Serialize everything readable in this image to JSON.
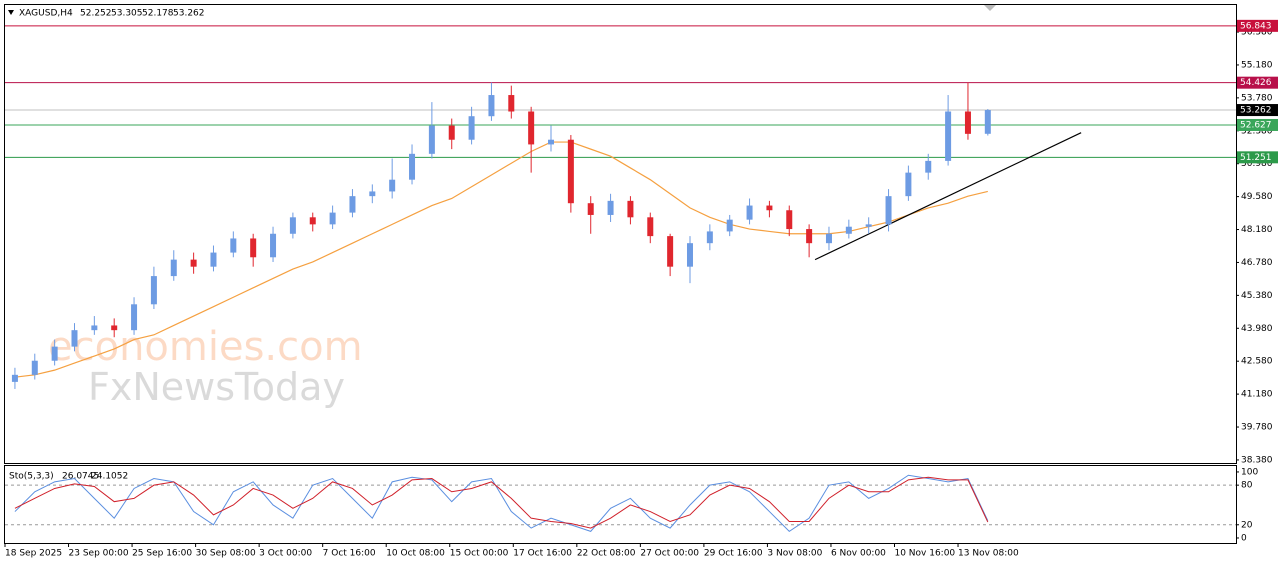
{
  "header": {
    "symbol": "XAGUSD,H4",
    "ohlc": [
      52.252,
      53.305,
      52.178,
      53.262
    ]
  },
  "watermark": [
    "economies.com",
    "FxNewsToday"
  ],
  "chart_data": [
    {
      "type": "candlestick",
      "open": [
        41.7,
        42.0,
        42.6,
        43.2,
        43.9,
        44.1,
        43.9,
        45.0,
        46.2,
        46.9,
        46.6,
        47.2,
        47.8,
        47.0,
        48.0,
        48.7,
        48.4,
        48.9,
        49.6,
        49.8,
        50.3,
        51.4,
        52.6,
        52.0,
        53.0,
        53.9,
        53.2,
        51.8,
        52.0,
        49.3,
        48.8,
        49.4,
        48.7,
        47.9,
        46.6,
        47.6,
        48.1,
        48.6,
        49.2,
        49.0,
        48.2,
        47.6,
        48.0,
        48.3,
        48.4,
        49.6,
        50.6,
        51.1,
        53.2,
        52.252
      ],
      "high": [
        42.3,
        42.9,
        43.5,
        44.2,
        44.5,
        44.4,
        45.3,
        46.6,
        47.3,
        47.2,
        47.5,
        48.1,
        48.0,
        48.3,
        48.9,
        48.9,
        49.2,
        49.9,
        50.1,
        51.2,
        51.8,
        53.6,
        52.9,
        53.4,
        54.43,
        54.3,
        53.4,
        52.6,
        52.2,
        49.6,
        49.7,
        49.6,
        48.9,
        48.0,
        47.9,
        48.4,
        48.8,
        49.5,
        49.4,
        49.2,
        48.4,
        48.3,
        48.6,
        48.7,
        49.9,
        50.9,
        51.4,
        53.9,
        54.43,
        53.305
      ],
      "low": [
        41.4,
        41.8,
        42.4,
        43.0,
        43.7,
        43.6,
        43.7,
        44.8,
        46.0,
        46.3,
        46.4,
        47.0,
        46.6,
        46.8,
        47.8,
        48.1,
        48.2,
        48.7,
        49.3,
        49.5,
        50.1,
        51.2,
        51.6,
        51.8,
        52.8,
        52.9,
        50.6,
        51.5,
        48.9,
        48.0,
        48.5,
        48.4,
        47.6,
        46.2,
        45.9,
        47.3,
        47.9,
        48.4,
        48.7,
        47.9,
        47.0,
        47.3,
        47.8,
        48.0,
        48.1,
        49.4,
        50.3,
        50.9,
        52.0,
        52.178
      ],
      "close": [
        42.0,
        42.6,
        43.2,
        43.9,
        44.1,
        43.9,
        45.0,
        46.2,
        46.9,
        46.6,
        47.2,
        47.8,
        47.0,
        48.0,
        48.7,
        48.4,
        48.9,
        49.6,
        49.8,
        50.3,
        51.4,
        52.6,
        52.0,
        53.0,
        53.9,
        53.2,
        51.8,
        52.0,
        49.3,
        48.8,
        49.4,
        48.7,
        47.9,
        46.6,
        47.6,
        48.1,
        48.6,
        49.2,
        49.0,
        48.2,
        47.6,
        48.0,
        48.3,
        48.4,
        49.6,
        50.6,
        51.1,
        53.2,
        52.25,
        53.262
      ],
      "up_color": "#6d9be3",
      "down_color": "#e0262e",
      "ma": {
        "color": "#f5a040",
        "values": [
          41.9,
          42.0,
          42.2,
          42.5,
          42.8,
          43.1,
          43.5,
          43.7,
          44.1,
          44.5,
          44.9,
          45.3,
          45.7,
          46.1,
          46.5,
          46.8,
          47.2,
          47.6,
          48.0,
          48.4,
          48.8,
          49.2,
          49.5,
          50.0,
          50.5,
          51.0,
          51.5,
          51.9,
          51.9,
          51.6,
          51.3,
          50.8,
          50.3,
          49.7,
          49.1,
          48.7,
          48.4,
          48.2,
          48.1,
          48.0,
          48.0,
          48.0,
          48.1,
          48.3,
          48.5,
          48.8,
          49.1,
          49.3,
          49.6,
          49.8
        ]
      },
      "trendline": {
        "color": "#000000",
        "x": [
          40.8,
          54.2
        ],
        "y": [
          46.9,
          52.3
        ]
      },
      "levels": [
        {
          "value": 56.843,
          "color": "#c8103c"
        },
        {
          "value": 54.426,
          "color": "#b8104a"
        },
        {
          "value": 53.262,
          "color": "#000000"
        },
        {
          "value": 52.627,
          "color": "#3aa65a"
        },
        {
          "value": 51.251,
          "color": "#2c9a4a"
        }
      ],
      "xlim": [
        0,
        62
      ],
      "ylim": [
        38.25,
        57.73
      ],
      "yticks": [
        {
          "value": 38.38,
          "label": "38.380"
        },
        {
          "value": 39.78,
          "label": "39.780"
        },
        {
          "value": 41.18,
          "label": "41.180"
        },
        {
          "value": 42.58,
          "label": "42.580"
        },
        {
          "value": 43.98,
          "label": "43.980"
        },
        {
          "value": 45.38,
          "label": "45.380"
        },
        {
          "value": 46.78,
          "label": "46.780"
        },
        {
          "value": 48.18,
          "label": "48.180"
        },
        {
          "value": 49.58,
          "label": "49.580"
        },
        {
          "value": 50.98,
          "label": "50.980"
        },
        {
          "value": 52.38,
          "label": "52.380"
        },
        {
          "value": 53.78,
          "label": "53.780"
        },
        {
          "value": 55.18,
          "label": "55.180"
        },
        {
          "value": 56.58,
          "label": "56.580"
        }
      ],
      "xticks": [
        {
          "value": 0,
          "label": "18 Sep 2025"
        },
        {
          "value": 3.2,
          "label": "23 Sep 00:00"
        },
        {
          "value": 6.4,
          "label": "25 Sep 16:00"
        },
        {
          "value": 9.6,
          "label": "30 Sep 08:00"
        },
        {
          "value": 12.8,
          "label": "3 Oct 00:00"
        },
        {
          "value": 16,
          "label": "7 Oct 16:00"
        },
        {
          "value": 19.2,
          "label": "10 Oct 08:00"
        },
        {
          "value": 22.4,
          "label": "15 Oct 00:00"
        },
        {
          "value": 25.6,
          "label": "17 Oct 16:00"
        },
        {
          "value": 28.8,
          "label": "22 Oct 08:00"
        },
        {
          "value": 32,
          "label": "27 Oct 00:00"
        },
        {
          "value": 35.2,
          "label": "29 Oct 16:00"
        },
        {
          "value": 38.4,
          "label": "3 Nov 08:00"
        },
        {
          "value": 41.6,
          "label": "6 Nov 00:00"
        },
        {
          "value": 44.8,
          "label": "10 Nov 16:00"
        },
        {
          "value": 48,
          "label": "13 Nov 08:00"
        }
      ]
    },
    {
      "type": "line",
      "title": "Sto(5,3,3)",
      "readout": [
        26.0745,
        24.1052
      ],
      "series": [
        {
          "color": "#5b8fe0",
          "values": [
            40,
            70,
            85,
            90,
            60,
            30,
            75,
            90,
            85,
            40,
            20,
            70,
            85,
            50,
            30,
            80,
            90,
            60,
            30,
            85,
            92,
            88,
            55,
            85,
            90,
            40,
            15,
            30,
            20,
            10,
            45,
            60,
            30,
            15,
            50,
            80,
            85,
            70,
            40,
            10,
            30,
            80,
            85,
            60,
            75,
            95,
            90,
            85,
            90,
            26.0745
          ]
        },
        {
          "color": "#d0202a",
          "values": [
            45,
            60,
            75,
            82,
            78,
            55,
            60,
            80,
            85,
            65,
            35,
            50,
            75,
            65,
            45,
            60,
            85,
            75,
            50,
            65,
            88,
            90,
            70,
            75,
            85,
            60,
            30,
            25,
            22,
            15,
            30,
            50,
            40,
            25,
            35,
            65,
            80,
            75,
            55,
            25,
            25,
            60,
            80,
            70,
            70,
            88,
            92,
            88,
            88,
            24.1052
          ]
        }
      ],
      "levels": [
        80,
        20
      ],
      "xlim": [
        0,
        62
      ],
      "ylim": [
        -7.6,
        109
      ],
      "yticks": [
        0,
        20,
        80,
        100
      ]
    }
  ]
}
